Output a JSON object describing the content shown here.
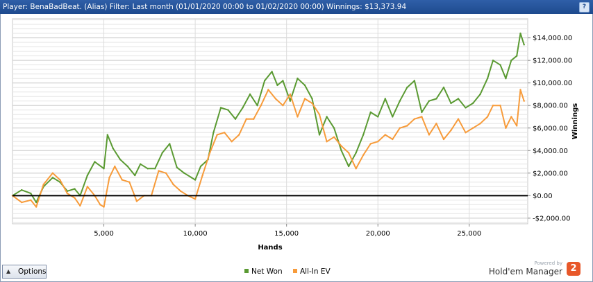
{
  "header": {
    "title": "Player: BenaBadBeat. (Alias) Filter: Last month (01/01/2020 00:00 to 01/02/2020 00:00) Winnings: $13,373.94",
    "help_label": "?"
  },
  "footer": {
    "options_label": "Options",
    "powered_by": "Powered by",
    "brand_name": "Hold'em Manager",
    "brand_logo": "2"
  },
  "chart_data": {
    "type": "line",
    "xlabel": "Hands",
    "ylabel": "Winnings",
    "xlim": [
      0,
      28200
    ],
    "ylim": [
      -2500,
      15700
    ],
    "x_ticks": [
      5000,
      10000,
      15000,
      20000,
      25000
    ],
    "x_tick_labels": [
      "5,000",
      "10,000",
      "15,000",
      "20,000",
      "25,000"
    ],
    "y_ticks": [
      -2000,
      0,
      2000,
      4000,
      6000,
      8000,
      10000,
      12000,
      14000
    ],
    "y_tick_labels": [
      "-$2,000.00",
      "$0.00",
      "$2,000.00",
      "$4,000.00",
      "$6,000.00",
      "$8,000.00",
      "$10,000.00",
      "$12,000.00",
      "$14,000.00"
    ],
    "grid": true,
    "legend_position": "bottom-center",
    "series": [
      {
        "name": "Net Won",
        "color": "#5a9a32",
        "x": [
          0,
          500,
          1000,
          1300,
          1700,
          2200,
          2600,
          3000,
          3400,
          3700,
          4100,
          4500,
          5000,
          5200,
          5500,
          5900,
          6300,
          6700,
          7000,
          7400,
          7800,
          8200,
          8600,
          9000,
          9400,
          9800,
          10000,
          10300,
          10700,
          11000,
          11400,
          11800,
          12200,
          12600,
          13000,
          13400,
          13800,
          14200,
          14500,
          14800,
          15200,
          15600,
          16000,
          16400,
          16800,
          17200,
          17600,
          18000,
          18400,
          18800,
          19200,
          19600,
          20000,
          20400,
          20800,
          21200,
          21600,
          22000,
          22400,
          22800,
          23200,
          23600,
          24000,
          24400,
          24800,
          25200,
          25600,
          26000,
          26300,
          26700,
          27000,
          27300,
          27600,
          27800,
          28000
        ],
        "values": [
          0,
          500,
          200,
          -600,
          800,
          1600,
          1200,
          400,
          600,
          0,
          1800,
          3000,
          2400,
          5400,
          4200,
          3200,
          2600,
          1800,
          2800,
          2400,
          2400,
          3800,
          4600,
          2500,
          2000,
          1600,
          1400,
          2600,
          3200,
          5600,
          7800,
          7600,
          6800,
          7800,
          9000,
          8000,
          10200,
          11000,
          9800,
          10200,
          8400,
          10400,
          9800,
          8600,
          5400,
          7000,
          6000,
          4000,
          2600,
          3800,
          5400,
          7400,
          7000,
          8600,
          7000,
          8400,
          9600,
          10200,
          7400,
          8400,
          8600,
          9600,
          8200,
          8600,
          7800,
          8200,
          9000,
          10400,
          12000,
          11600,
          10400,
          12000,
          12400,
          14400,
          13400
        ]
      },
      {
        "name": "All-In EV",
        "color": "#f79b3a",
        "x": [
          0,
          500,
          1000,
          1300,
          1700,
          2200,
          2600,
          3000,
          3400,
          3700,
          4100,
          4500,
          4800,
          5000,
          5300,
          5600,
          6000,
          6400,
          6800,
          7200,
          7600,
          8000,
          8400,
          8800,
          9200,
          9600,
          10000,
          10400,
          10800,
          11200,
          11600,
          12000,
          12400,
          12800,
          13200,
          13600,
          14000,
          14400,
          14800,
          15200,
          15600,
          16000,
          16400,
          16800,
          17200,
          17600,
          18000,
          18400,
          18800,
          19200,
          19600,
          20000,
          20400,
          20800,
          21200,
          21600,
          22000,
          22400,
          22800,
          23200,
          23600,
          24000,
          24400,
          24800,
          25200,
          25600,
          26000,
          26300,
          26700,
          27000,
          27300,
          27600,
          27800,
          28000
        ],
        "values": [
          0,
          -600,
          -400,
          -1000,
          1000,
          2000,
          1400,
          200,
          -200,
          -900,
          800,
          0,
          -800,
          -1000,
          1600,
          2600,
          1400,
          1200,
          -500,
          0,
          0,
          2200,
          2000,
          1000,
          400,
          0,
          -300,
          1800,
          3800,
          5400,
          5600,
          4800,
          5400,
          6800,
          6800,
          8000,
          9400,
          8600,
          8000,
          9000,
          7000,
          8600,
          8200,
          7200,
          4800,
          5200,
          4400,
          3800,
          2400,
          3600,
          4600,
          4800,
          5400,
          5000,
          6000,
          6200,
          6800,
          7000,
          5400,
          6400,
          5000,
          5800,
          6800,
          5600,
          6000,
          6400,
          7000,
          8000,
          8000,
          6000,
          7000,
          6200,
          9400,
          8400
        ]
      }
    ]
  }
}
